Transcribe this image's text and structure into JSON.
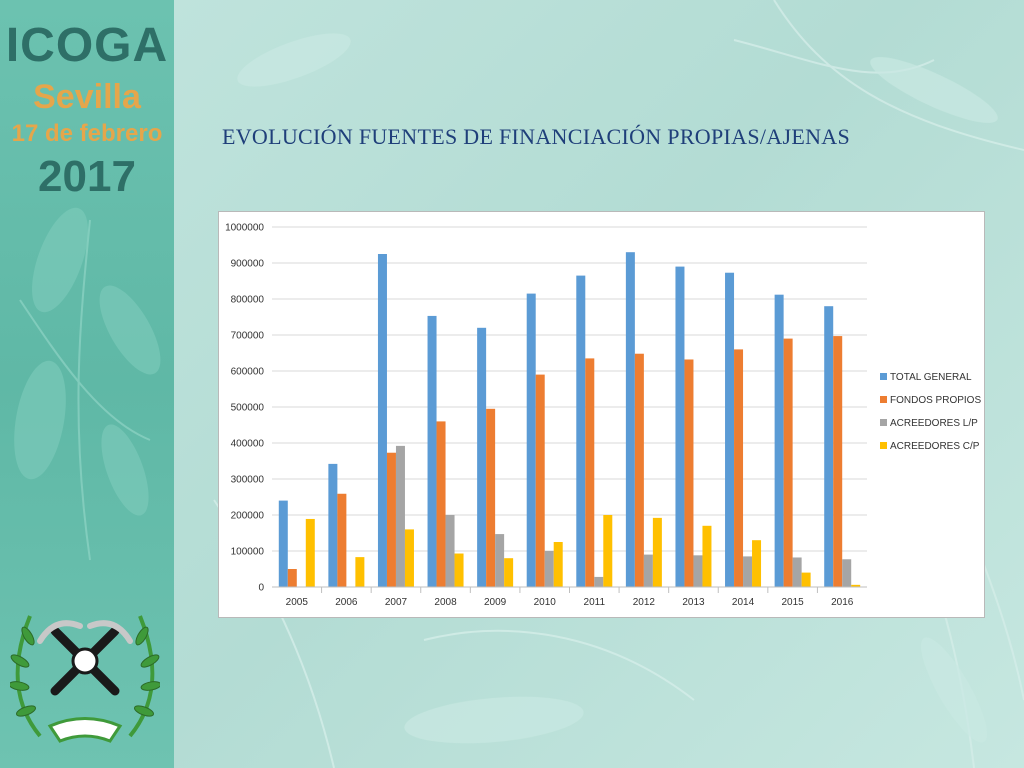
{
  "sidebar": {
    "org_name": "ICOGA",
    "city": "Sevilla",
    "date": "17 de febrero",
    "year": "2017"
  },
  "slide": {
    "title": "EVOLUCIÓN FUENTES DE FINANCIACIÓN PROPIAS/AJENAS"
  },
  "colors": {
    "accent_dark": "#2e6f67",
    "accent_orange": "#e5a64b",
    "title_blue": "#1f3f7a"
  },
  "chart_data": {
    "type": "bar",
    "title": "",
    "xlabel": "",
    "ylabel": "",
    "ylim": [
      0,
      1000000
    ],
    "yticks": [
      0,
      100000,
      200000,
      300000,
      400000,
      500000,
      600000,
      700000,
      800000,
      900000,
      1000000
    ],
    "grid": true,
    "legend_position": "right",
    "categories": [
      "2005",
      "2006",
      "2007",
      "2008",
      "2009",
      "2010",
      "2011",
      "2012",
      "2013",
      "2014",
      "2015",
      "2016"
    ],
    "series": [
      {
        "name": "TOTAL GENERAL",
        "color": "#5b9bd5",
        "values": [
          240000,
          342000,
          925000,
          753000,
          720000,
          815000,
          865000,
          930000,
          890000,
          873000,
          812000,
          780000
        ]
      },
      {
        "name": "FONDOS PROPIOS",
        "color": "#ed7d31",
        "values": [
          50000,
          259000,
          373000,
          460000,
          495000,
          590000,
          635000,
          648000,
          632000,
          660000,
          690000,
          697000
        ]
      },
      {
        "name": "ACREEDORES L/P",
        "color": "#a5a5a5",
        "values": [
          0,
          0,
          392000,
          200000,
          147000,
          100000,
          28000,
          90000,
          88000,
          85000,
          82000,
          77000
        ]
      },
      {
        "name": "ACREEDORES C/P",
        "color": "#ffc000",
        "values": [
          189000,
          83000,
          160000,
          93000,
          80000,
          125000,
          200000,
          192000,
          170000,
          130000,
          40000,
          6000
        ]
      }
    ]
  }
}
